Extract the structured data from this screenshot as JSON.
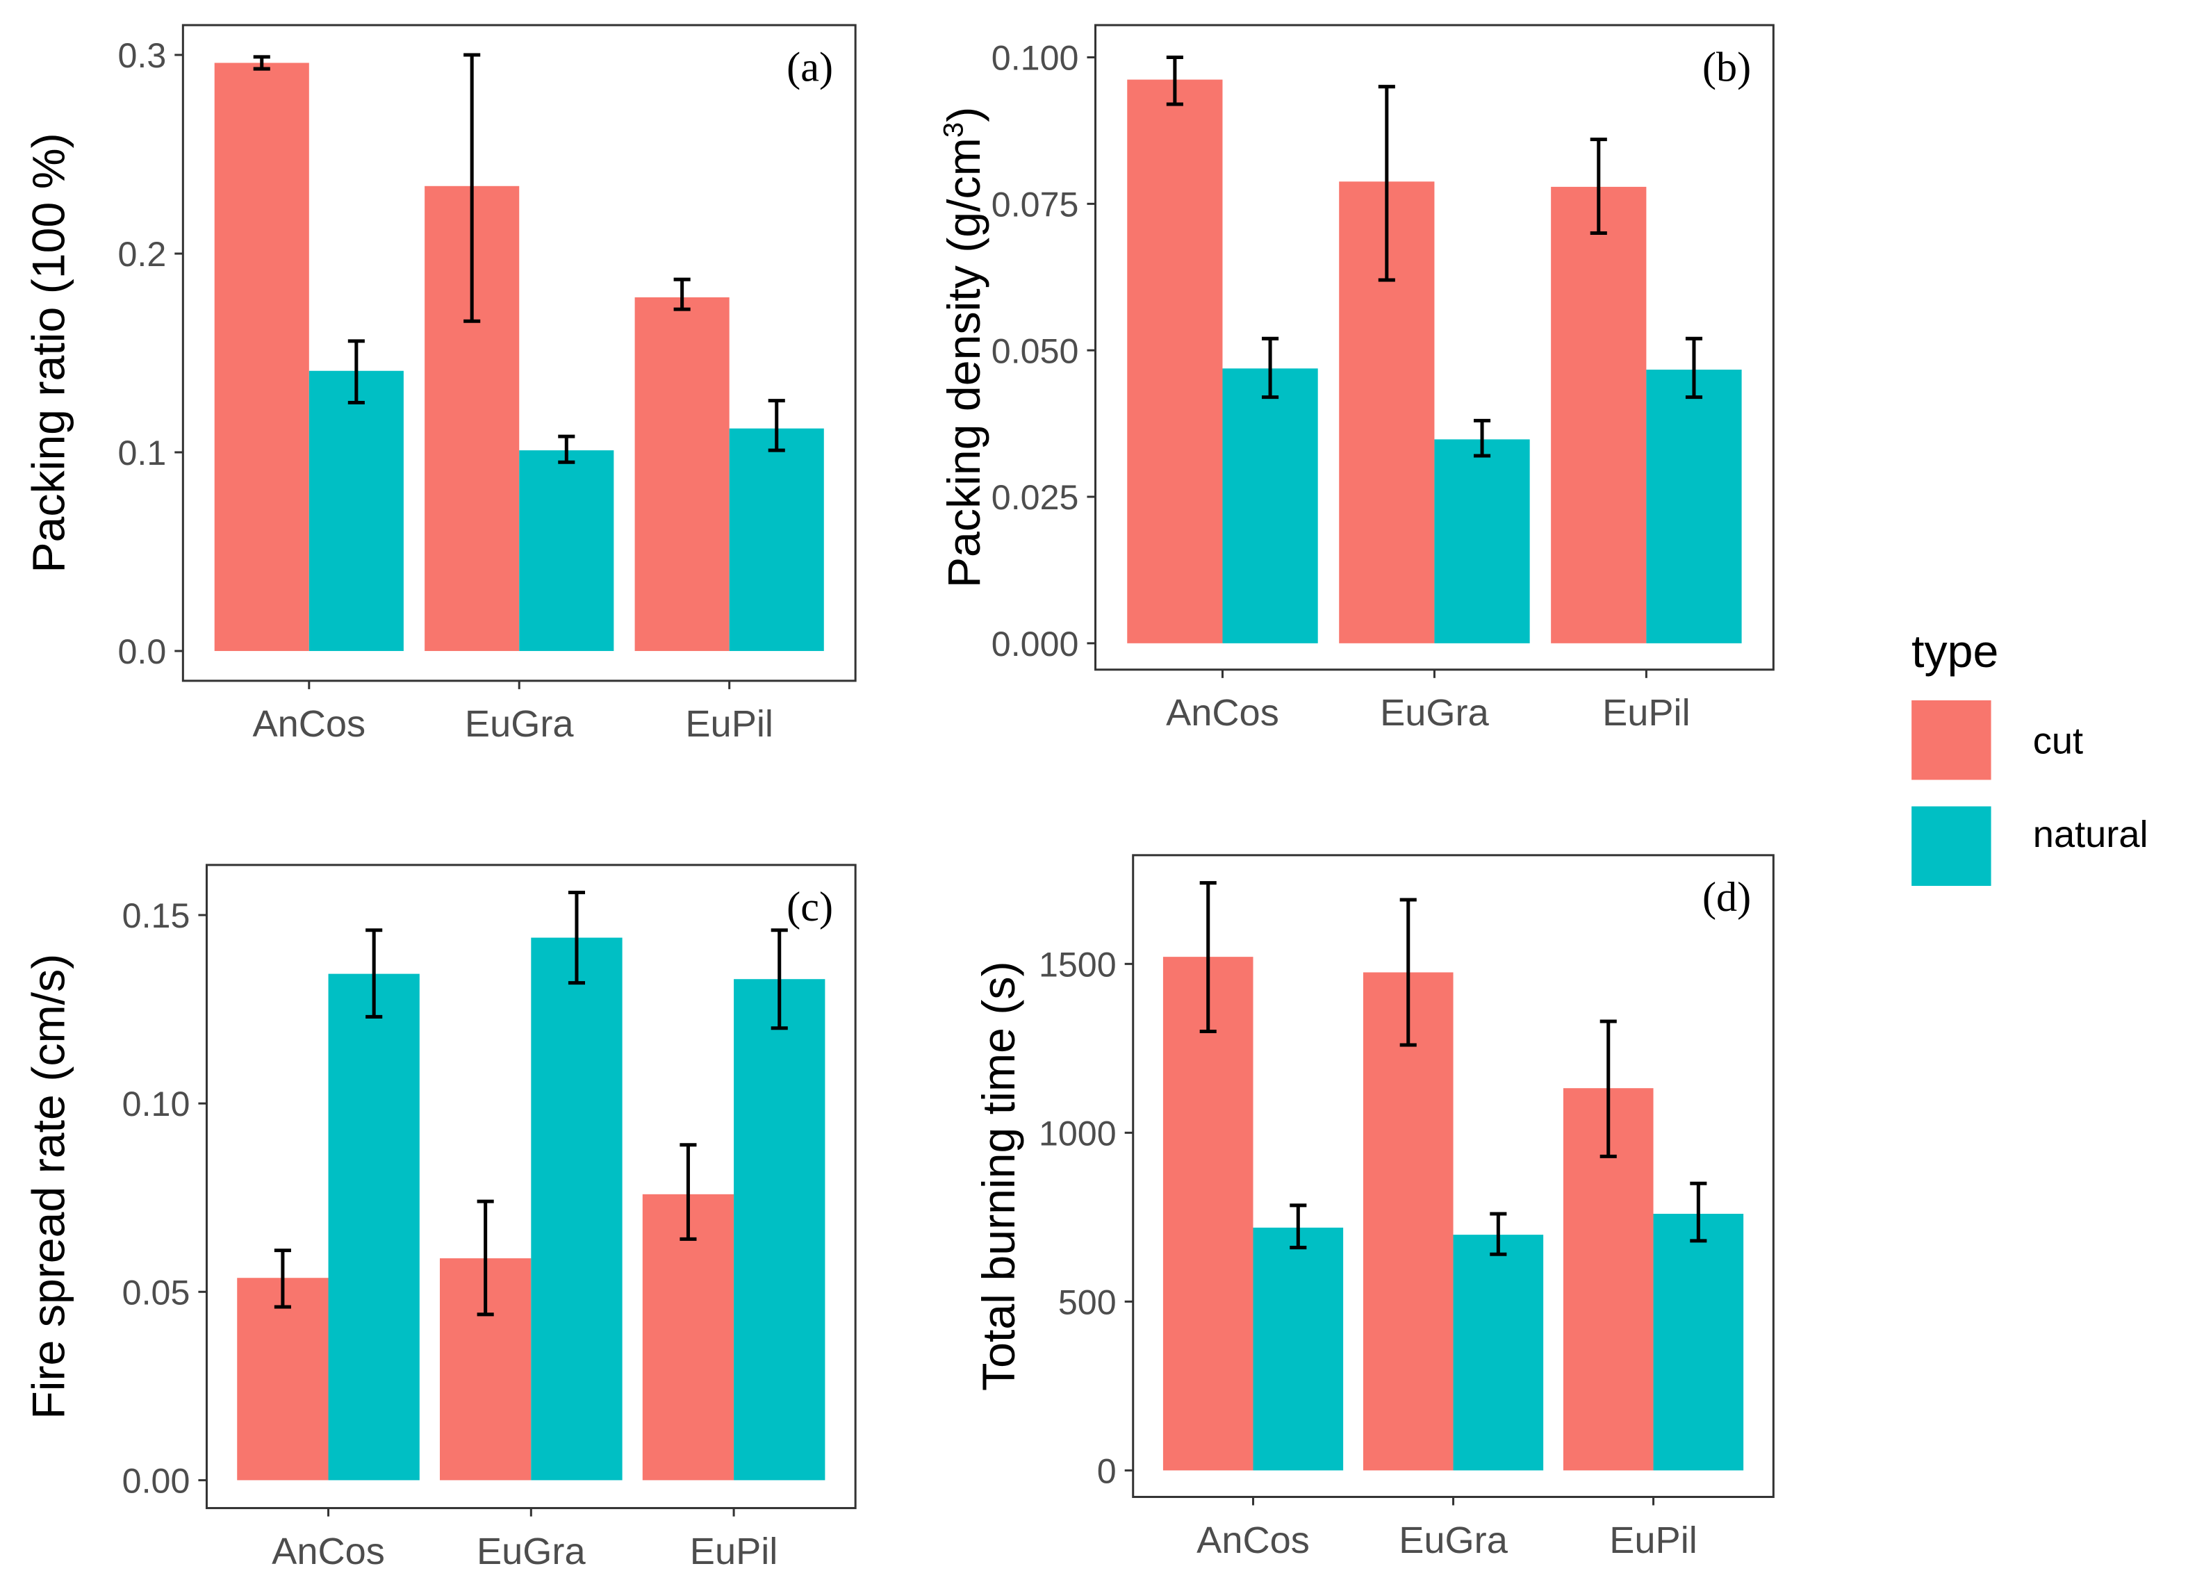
{
  "legend": {
    "title": "type",
    "items": [
      {
        "label": "cut",
        "color": "#F8766D"
      },
      {
        "label": "natural",
        "color": "#00BFC4"
      }
    ]
  },
  "chart_data": [
    {
      "type": "bar",
      "tag": "(a)",
      "ylabel": "Packing ratio (100 %)",
      "ylim": [
        -0.015,
        0.315
      ],
      "yticks": [
        "0.0",
        "0.1",
        "0.2",
        "0.3"
      ],
      "ytick_values": [
        0,
        0.1,
        0.2,
        0.3
      ],
      "categories": [
        "AnCos",
        "EuGra",
        "EuPil"
      ],
      "series": [
        {
          "name": "cut",
          "values": [
            0.296,
            0.234,
            0.178
          ],
          "err_low": [
            0.293,
            0.166,
            0.172
          ],
          "err_high": [
            0.299,
            0.3,
            0.187
          ]
        },
        {
          "name": "natural",
          "values": [
            0.141,
            0.101,
            0.112
          ],
          "err_low": [
            0.125,
            0.095,
            0.101
          ],
          "err_high": [
            0.156,
            0.108,
            0.126
          ]
        }
      ]
    },
    {
      "type": "bar",
      "tag": "(b)",
      "ylabel": "Packing density (g/cm",
      "ylabel_sup": "3",
      "ylabel_end": ")",
      "ylim": [
        -0.0045,
        0.1055
      ],
      "yticks": [
        "0.000",
        "0.025",
        "0.050",
        "0.075",
        "0.100"
      ],
      "ytick_values": [
        0,
        0.025,
        0.05,
        0.075,
        0.1
      ],
      "categories": [
        "AnCos",
        "EuGra",
        "EuPil"
      ],
      "series": [
        {
          "name": "cut",
          "values": [
            0.0962,
            0.0788,
            0.0779
          ],
          "err_low": [
            0.092,
            0.062,
            0.07
          ],
          "err_high": [
            0.1,
            0.095,
            0.086
          ]
        },
        {
          "name": "natural",
          "values": [
            0.0469,
            0.0348,
            0.0467
          ],
          "err_low": [
            0.042,
            0.032,
            0.042
          ],
          "err_high": [
            0.052,
            0.038,
            0.052
          ]
        }
      ]
    },
    {
      "type": "bar",
      "tag": "(c)",
      "ylabel": "Fire spread rate (cm/s)",
      "ylim": [
        -0.0074,
        0.1633
      ],
      "yticks": [
        "0.00",
        "0.05",
        "0.10",
        "0.15"
      ],
      "ytick_values": [
        0,
        0.05,
        0.1,
        0.15
      ],
      "categories": [
        "AnCos",
        "EuGra",
        "EuPil"
      ],
      "series": [
        {
          "name": "cut",
          "values": [
            0.0537,
            0.0589,
            0.0759
          ],
          "err_low": [
            0.046,
            0.044,
            0.064
          ],
          "err_high": [
            0.061,
            0.074,
            0.089
          ]
        },
        {
          "name": "natural",
          "values": [
            0.1344,
            0.144,
            0.133
          ],
          "err_low": [
            0.123,
            0.132,
            0.12
          ],
          "err_high": [
            0.146,
            0.156,
            0.146
          ]
        }
      ]
    },
    {
      "type": "bar",
      "tag": "(d)",
      "ylabel": "Total burning time (s)",
      "ylim": [
        -78.5,
        1822
      ],
      "yticks": [
        "0",
        "500",
        "1000",
        "1500"
      ],
      "ytick_values": [
        0,
        500,
        1000,
        1500
      ],
      "categories": [
        "AnCos",
        "EuGra",
        "EuPil"
      ],
      "series": [
        {
          "name": "cut",
          "values": [
            1521,
            1475,
            1132
          ],
          "err_low": [
            1300,
            1260,
            930
          ],
          "err_high": [
            1740,
            1690,
            1330
          ]
        },
        {
          "name": "natural",
          "values": [
            719,
            698,
            760
          ],
          "err_low": [
            660,
            640,
            680
          ],
          "err_high": [
            785,
            760,
            850
          ]
        }
      ]
    }
  ]
}
